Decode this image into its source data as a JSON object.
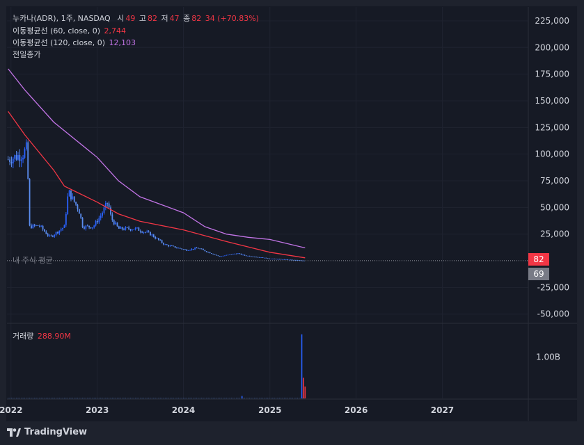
{
  "legend": {
    "symbol_line": "누카나(ADR), 1주, NASDAQ",
    "o_label": "시",
    "o_val": "49",
    "h_label": "고",
    "h_val": "82",
    "l_label": "저",
    "l_val": "47",
    "c_label": "종",
    "c_val": "82",
    "change": "34 (+70.83%)",
    "ma60_label": "이동평균선 (60, close, 0)",
    "ma60_val": "2,744",
    "ma120_label": "이동평균선 (120, close, 0)",
    "ma120_val": "12,103",
    "prev_close": "전일종가"
  },
  "avg_price_label": "내 주식 평균",
  "price_tags": {
    "last": "82",
    "avg": "69"
  },
  "volume_legend": {
    "label": "거래량",
    "value": "288.90M"
  },
  "brand": "TradingView",
  "colors": {
    "up": "#2962ff",
    "down": "#5b8def",
    "ma60": "#f23645",
    "ma120": "#c274e6",
    "bg": "#161a25"
  },
  "chart_data": [
    {
      "type": "candlestick",
      "title": "누카나(ADR), 1주, NASDAQ",
      "y_ticks": [
        225000,
        200000,
        175000,
        150000,
        125000,
        100000,
        75000,
        50000,
        25000,
        -25000,
        -50000
      ],
      "y_tick_labels": [
        "225,000",
        "200,000",
        "175,000",
        "150,000",
        "125,000",
        "100,000",
        "75,000",
        "50,000",
        "25,000",
        "-25,000",
        "-50,000"
      ],
      "ylim": [
        -58000,
        238000
      ],
      "x_ticks": [
        "2022",
        "2023",
        "2024",
        "2025",
        "2026",
        "2027"
      ],
      "xlim": [
        "2021-12-15",
        "2027-12-31"
      ],
      "price_keyframes": [
        [
          "2021-12-20",
          95000
        ],
        [
          "2022-02-20",
          100000
        ],
        [
          "2022-03-10",
          106000
        ],
        [
          "2022-03-20",
          32000
        ],
        [
          "2022-05-01",
          33000
        ],
        [
          "2022-06-15",
          22000
        ],
        [
          "2022-08-15",
          32000
        ],
        [
          "2022-09-01",
          65000
        ],
        [
          "2022-10-15",
          48000
        ],
        [
          "2022-11-01",
          32000
        ],
        [
          "2022-12-15",
          32000
        ],
        [
          "2023-01-15",
          42000
        ],
        [
          "2023-02-15",
          55000
        ],
        [
          "2023-03-01",
          40000
        ],
        [
          "2023-04-01",
          30000
        ],
        [
          "2023-06-15",
          30000
        ],
        [
          "2023-08-15",
          25000
        ],
        [
          "2023-10-15",
          15000
        ],
        [
          "2024-01-15",
          10000
        ],
        [
          "2024-03-01",
          12000
        ],
        [
          "2024-06-01",
          4000
        ],
        [
          "2024-08-15",
          7000
        ],
        [
          "2024-09-15",
          5000
        ],
        [
          "2025-01-01",
          2000
        ],
        [
          "2025-05-30",
          82
        ]
      ],
      "series": [
        {
          "name": "이동평균선 (60, close, 0)",
          "last": 2744,
          "points": [
            [
              "2021-12-20",
              140000
            ],
            [
              "2022-03-01",
              118000
            ],
            [
              "2022-07-01",
              85000
            ],
            [
              "2022-08-15",
              70000
            ],
            [
              "2023-01-01",
              55000
            ],
            [
              "2023-04-01",
              44000
            ],
            [
              "2023-07-01",
              37000
            ],
            [
              "2024-01-01",
              29000
            ],
            [
              "2024-07-01",
              18000
            ],
            [
              "2025-01-01",
              8000
            ],
            [
              "2025-05-30",
              2744
            ]
          ]
        },
        {
          "name": "이동평균선 (120, close, 0)",
          "last": 12103,
          "points": [
            [
              "2021-12-20",
              180000
            ],
            [
              "2022-03-01",
              160000
            ],
            [
              "2022-07-01",
              130000
            ],
            [
              "2023-01-01",
              97000
            ],
            [
              "2023-04-01",
              75000
            ],
            [
              "2023-07-01",
              60000
            ],
            [
              "2024-01-01",
              45000
            ],
            [
              "2024-04-01",
              32000
            ],
            [
              "2024-07-01",
              25000
            ],
            [
              "2024-10-01",
              22000
            ],
            [
              "2025-01-01",
              20000
            ],
            [
              "2025-05-30",
              12103
            ]
          ]
        }
      ]
    },
    {
      "type": "bar",
      "title": "거래량",
      "last_value": "288.90M",
      "y_ticks": [
        1000000000
      ],
      "y_tick_labels": [
        "1.00B"
      ],
      "ylim": [
        0,
        1800000000
      ],
      "spikes": [
        [
          "2025-05-16",
          1550000000
        ],
        [
          "2025-05-23",
          500000000
        ],
        [
          "2025-05-30",
          288900000
        ],
        [
          "2024-09-05",
          60000000
        ]
      ],
      "baseline": 8000000
    }
  ]
}
